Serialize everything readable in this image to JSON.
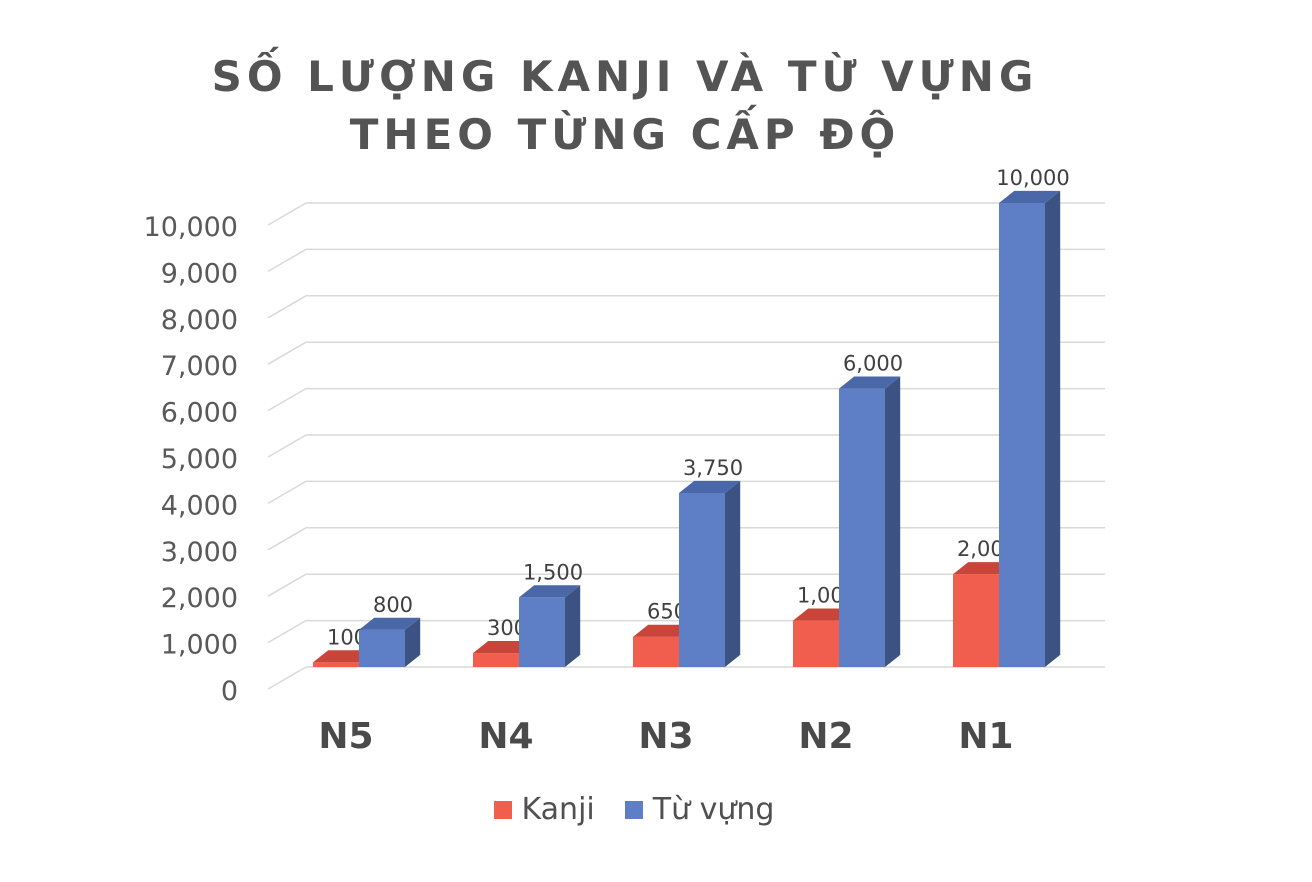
{
  "chart_data": {
    "type": "bar",
    "title_lines": [
      "SỐ LƯỢNG KANJI VÀ TỪ VỰNG",
      "THEO TỪNG CẤP ĐỘ"
    ],
    "categories": [
      "N5",
      "N4",
      "N3",
      "N2",
      "N1"
    ],
    "series": [
      {
        "name": "Kanji",
        "values": [
          100,
          300,
          650,
          1000,
          2000
        ],
        "color": "#F15E4E",
        "side_color": "#B23A2E",
        "top_color": "#C9453A"
      },
      {
        "name": "Từ vựng",
        "values": [
          800,
          1500,
          3750,
          6000,
          10000
        ],
        "color": "#5E7FC6",
        "side_color": "#3B5283",
        "top_color": "#4A67A8"
      }
    ],
    "data_labels": [
      [
        "100",
        "300",
        "650",
        "1,000",
        "2,000"
      ],
      [
        "800",
        "1,500",
        "3,750",
        "6,000",
        "10,000"
      ]
    ],
    "y_ticks": [
      "0",
      "1,000",
      "2,000",
      "3,000",
      "4,000",
      "5,000",
      "6,000",
      "7,000",
      "8,000",
      "9,000",
      "10,000"
    ],
    "ylim": [
      0,
      10000
    ],
    "grid": true,
    "legend_position": "bottom",
    "style": "3d-clustered-column"
  }
}
